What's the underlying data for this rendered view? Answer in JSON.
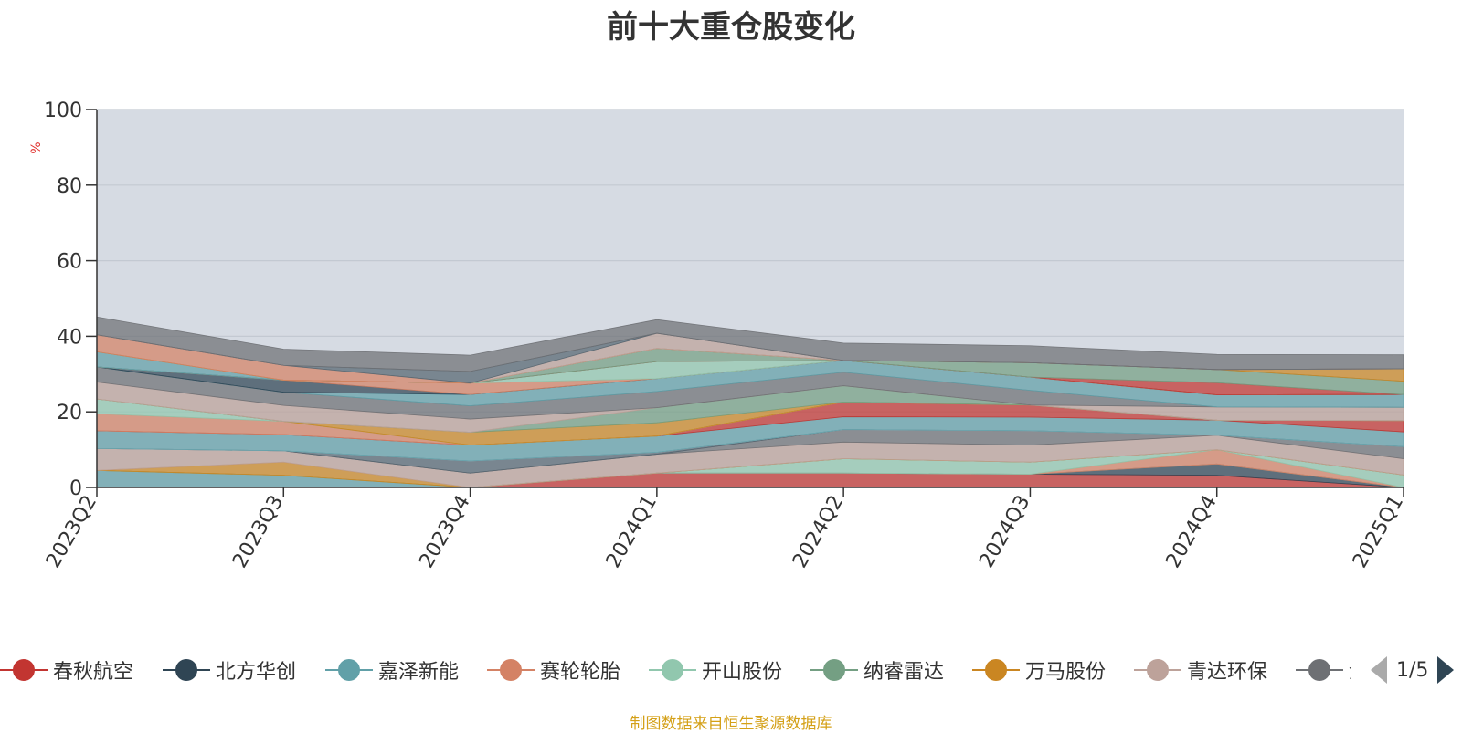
{
  "chart": {
    "title": "前十大重仓股变化",
    "unit": "%",
    "source_note": "制图数据来自恒生聚源数据库"
  },
  "legend": {
    "items": [
      {
        "label": "春秋航空",
        "color": "#c23531"
      },
      {
        "label": "北方华创",
        "color": "#2f4554"
      },
      {
        "label": "嘉泽新能",
        "color": "#61a0a8"
      },
      {
        "label": "赛轮轮胎",
        "color": "#d48265"
      },
      {
        "label": "开山股份",
        "color": "#91c7ae"
      },
      {
        "label": "纳睿雷达",
        "color": "#749f83"
      },
      {
        "label": "万马股份",
        "color": "#ca8622"
      },
      {
        "label": "青达环保",
        "color": "#bda29a"
      },
      {
        "label": "金",
        "color": "#6e7074"
      }
    ],
    "page": "1/5"
  },
  "chart_data": {
    "type": "area",
    "stacked": true,
    "x": [
      "2023Q2",
      "2023Q3",
      "2023Q4",
      "2024Q1",
      "2024Q2",
      "2024Q3",
      "2024Q4",
      "2025Q1"
    ],
    "ylim": [
      0,
      100
    ],
    "yticks": [
      0,
      20,
      40,
      60,
      80,
      100
    ],
    "grid": true,
    "series": [
      {
        "color": "#c23531",
        "values": [
          0,
          0,
          0,
          3.8,
          3.8,
          3.5,
          3.2,
          0
        ]
      },
      {
        "color": "#2f4554",
        "values": [
          0,
          0,
          0,
          0,
          0,
          0,
          3.0,
          0
        ]
      },
      {
        "color": "#61a0a8",
        "values": [
          4.5,
          3.2,
          0,
          0,
          0,
          0,
          0,
          0
        ]
      },
      {
        "color": "#d48265",
        "values": [
          0,
          0,
          0,
          0,
          0,
          0,
          3.8,
          0
        ]
      },
      {
        "color": "#91c7ae",
        "values": [
          0,
          0,
          0,
          0,
          3.8,
          3.2,
          0,
          3.3
        ]
      },
      {
        "color": "#749f83",
        "values": [
          0,
          0,
          0,
          0,
          0,
          0,
          0,
          0
        ]
      },
      {
        "color": "#ca8622",
        "values": [
          0,
          3.5,
          0,
          0,
          0,
          0,
          0,
          0
        ]
      },
      {
        "color": "#bda29a",
        "values": [
          5.8,
          3.0,
          3.8,
          5.0,
          4.4,
          4.5,
          3.8,
          4.3
        ]
      },
      {
        "color": "#6e7074",
        "values": [
          0,
          0,
          0,
          0,
          3.3,
          3.8,
          0,
          3.2
        ]
      },
      {
        "color": "#546570",
        "values": [
          0,
          0,
          3.2,
          0.5,
          0,
          0,
          0,
          0
        ]
      },
      {
        "color": "#c4ccd3",
        "values": [
          0,
          0,
          0,
          0,
          0,
          0,
          0,
          0
        ]
      },
      {
        "color": "#61a0a8",
        "values": [
          4.7,
          4.3,
          4.2,
          4.3,
          3.4,
          3.6,
          4.0,
          3.9
        ]
      },
      {
        "color": "#c23531",
        "values": [
          0,
          0,
          0,
          0,
          3.9,
          3.2,
          0,
          3.0
        ]
      },
      {
        "color": "#d48265",
        "values": [
          4.5,
          3.5,
          0,
          0,
          0,
          0,
          0,
          0
        ]
      },
      {
        "color": "#91c7ae",
        "values": [
          3.9,
          0,
          0,
          0,
          0,
          0,
          0,
          0
        ]
      },
      {
        "color": "#ca8622",
        "values": [
          0,
          0,
          3.4,
          3.5,
          0,
          0,
          0,
          0
        ]
      },
      {
        "color": "#749f83",
        "values": [
          0,
          0,
          0,
          4.0,
          4.3,
          0,
          0,
          0
        ]
      },
      {
        "color": "#bda29a",
        "values": [
          4.5,
          4.2,
          3.5,
          0,
          0,
          0,
          3.5,
          3.5
        ]
      },
      {
        "color": "#6e7074",
        "values": [
          4.0,
          3.5,
          3.5,
          4.3,
          3.6,
          3.9,
          0,
          0
        ]
      },
      {
        "color": "#61a0a8",
        "values": [
          0,
          0,
          3.0,
          3.4,
          3.1,
          3.5,
          3.2,
          3.4
        ]
      },
      {
        "color": "#2f4554",
        "values": [
          0,
          3.2,
          0,
          0,
          0,
          0,
          0,
          0
        ]
      },
      {
        "color": "#d48265",
        "values": [
          0,
          0,
          3.0,
          0,
          0,
          0,
          0,
          0
        ]
      },
      {
        "color": "#91c7ae",
        "values": [
          0,
          0,
          0,
          4.5,
          0,
          0,
          0,
          0
        ]
      },
      {
        "color": "#c23531",
        "values": [
          0,
          0,
          0,
          0,
          0,
          0,
          3.2,
          0
        ]
      },
      {
        "color": "#749f83",
        "values": [
          0,
          0,
          0,
          3.5,
          0,
          3.8,
          3.5,
          3.5
        ]
      },
      {
        "color": "#61a0a8",
        "values": [
          4.0,
          0,
          0,
          0,
          0,
          0,
          0,
          0
        ]
      },
      {
        "color": "#ca8622",
        "values": [
          0,
          0,
          0,
          0,
          0,
          0,
          0,
          3.3
        ]
      },
      {
        "color": "#d48265",
        "values": [
          4.5,
          3.9,
          0,
          0,
          0,
          0,
          0,
          0
        ]
      },
      {
        "color": "#bda29a",
        "values": [
          0,
          0,
          0,
          4.0,
          0,
          0,
          0,
          0
        ]
      },
      {
        "color": "#546570",
        "values": [
          0,
          0,
          3.1,
          0,
          0,
          0,
          0,
          0
        ]
      },
      {
        "color": "#6e7074",
        "values": [
          4.7,
          4.3,
          4.3,
          3.6,
          4.6,
          4.5,
          4.0,
          3.7
        ]
      }
    ]
  }
}
